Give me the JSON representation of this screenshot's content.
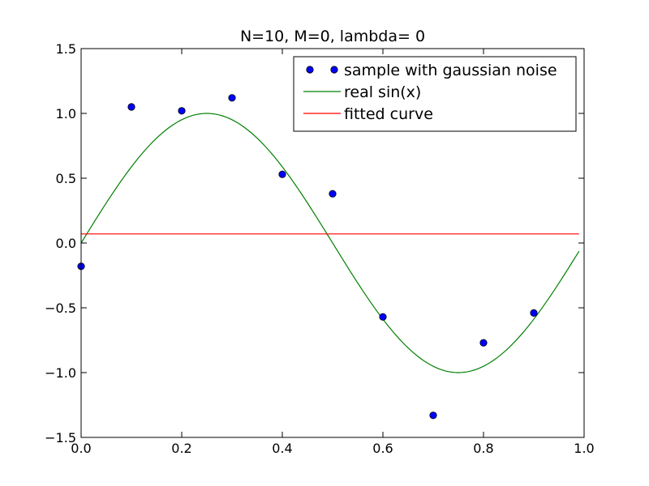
{
  "chart_data": {
    "type": "line",
    "title": "N=10, M=0, lambda= 0",
    "xlabel": "",
    "ylabel": "",
    "xlim": [
      0.0,
      1.0
    ],
    "ylim": [
      -1.5,
      1.5
    ],
    "x_ticks": [
      0.0,
      0.2,
      0.4,
      0.6,
      0.8,
      1.0
    ],
    "x_tick_labels": [
      "0.0",
      "0.2",
      "0.4",
      "0.6",
      "0.8",
      "1.0"
    ],
    "y_ticks": [
      -1.5,
      -1.0,
      -0.5,
      0.0,
      0.5,
      1.0,
      1.5
    ],
    "y_tick_labels": [
      "−1.5",
      "−1.0",
      "−0.5",
      "0.0",
      "0.5",
      "1.0",
      "1.5"
    ],
    "grid": false,
    "legend_position": "top-right",
    "series": [
      {
        "name": "sample with gaussian noise",
        "kind": "scatter",
        "color": "#0000ff",
        "points": [
          {
            "x": 0.0,
            "y": -0.18
          },
          {
            "x": 0.1,
            "y": 1.05
          },
          {
            "x": 0.2,
            "y": 1.02
          },
          {
            "x": 0.3,
            "y": 1.12
          },
          {
            "x": 0.4,
            "y": 0.53
          },
          {
            "x": 0.5,
            "y": 0.38
          },
          {
            "x": 0.6,
            "y": -0.57
          },
          {
            "x": 0.7,
            "y": -1.33
          },
          {
            "x": 0.8,
            "y": -0.77
          },
          {
            "x": 0.9,
            "y": -0.54
          }
        ]
      },
      {
        "name": "real sin(x)",
        "kind": "line",
        "color": "#008000",
        "function": "sin(2*pi*x)",
        "x_range": [
          0.0,
          0.99
        ]
      },
      {
        "name": "fitted curve",
        "kind": "line",
        "color": "#ff0000",
        "x": [
          0.0,
          0.99
        ],
        "y": [
          0.07,
          0.07
        ]
      }
    ]
  }
}
